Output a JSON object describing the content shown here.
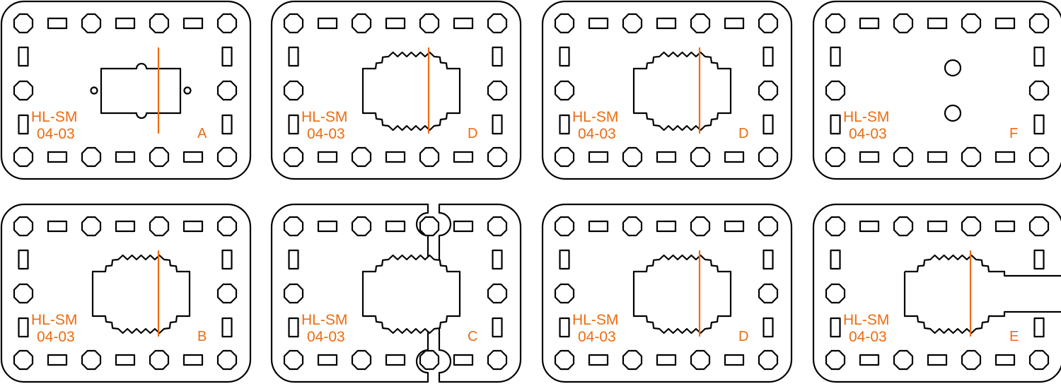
{
  "colors": {
    "outline": "#000000",
    "mark": "#ee6b0f",
    "background": "#ffffff"
  },
  "part_label": {
    "line1": "HL-SM",
    "line2": "04-03"
  },
  "plates": [
    {
      "id": "A",
      "letter": "A",
      "center": "rectangular"
    },
    {
      "id": "D",
      "letter": "D",
      "center": "serrated"
    },
    {
      "id": "D",
      "letter": "D",
      "center": "serrated"
    },
    {
      "id": "F",
      "letter": "F",
      "center": "two-holes"
    },
    {
      "id": "B",
      "letter": "B",
      "center": "serrated"
    },
    {
      "id": "C",
      "letter": "C",
      "center": "serrated-split"
    },
    {
      "id": "D",
      "letter": "D",
      "center": "serrated"
    },
    {
      "id": "E",
      "letter": "E",
      "center": "serrated-slot"
    }
  ]
}
